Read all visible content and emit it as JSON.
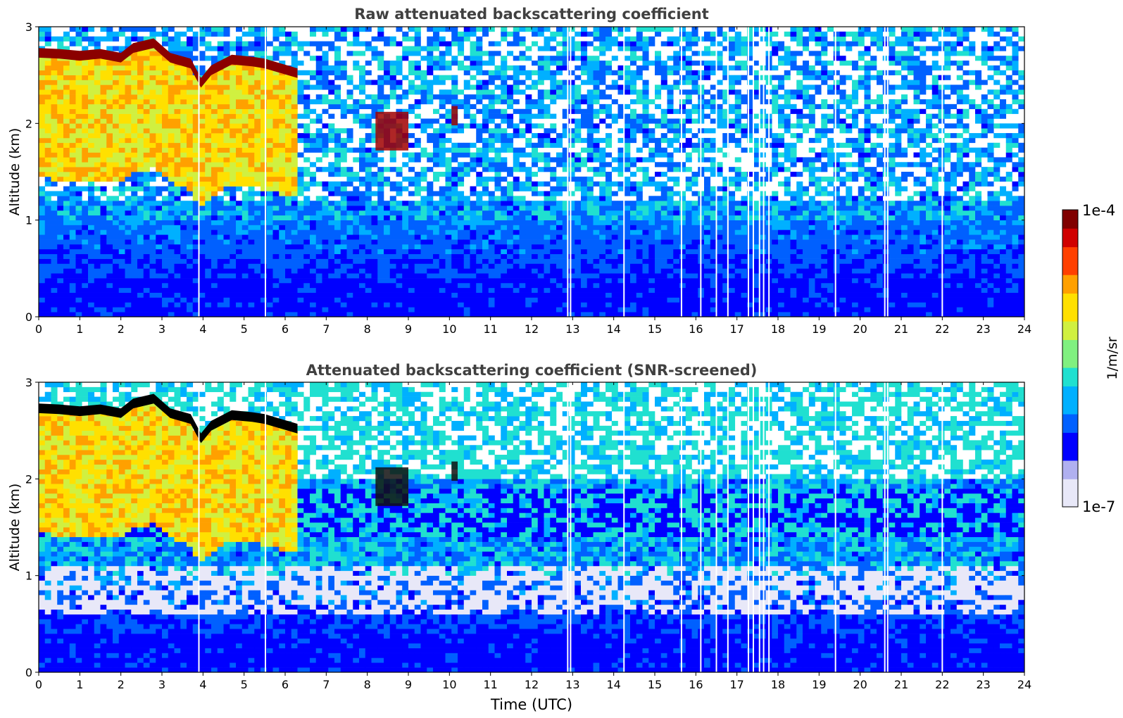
{
  "chart_data": [
    {
      "type": "heatmap",
      "title": "Raw attenuated backscattering coefficient",
      "xlabel": "",
      "ylabel": "Altitude (km)",
      "xlim": [
        0,
        24
      ],
      "ylim": [
        0,
        3
      ],
      "x_ticks": [
        0,
        1,
        2,
        3,
        4,
        5,
        6,
        7,
        8,
        9,
        10,
        11,
        12,
        13,
        14,
        15,
        16,
        17,
        18,
        19,
        20,
        21,
        22,
        23,
        24
      ],
      "y_ticks": [
        0,
        1,
        2,
        3
      ],
      "screened": false,
      "cloud_top_km": [
        {
          "t": 0.0,
          "z": 2.73
        },
        {
          "t": 0.5,
          "z": 2.72
        },
        {
          "t": 1.0,
          "z": 2.7
        },
        {
          "t": 1.5,
          "z": 2.72
        },
        {
          "t": 2.0,
          "z": 2.68
        },
        {
          "t": 2.3,
          "z": 2.78
        },
        {
          "t": 2.8,
          "z": 2.83
        },
        {
          "t": 3.2,
          "z": 2.68
        },
        {
          "t": 3.7,
          "z": 2.62
        },
        {
          "t": 3.95,
          "z": 2.42
        },
        {
          "t": 4.2,
          "z": 2.55
        },
        {
          "t": 4.7,
          "z": 2.66
        },
        {
          "t": 5.2,
          "z": 2.64
        },
        {
          "t": 5.5,
          "z": 2.62
        },
        {
          "t": 6.3,
          "z": 2.52
        }
      ],
      "cloud_patches_km": [
        {
          "t0": 8.2,
          "t1": 9.0,
          "z_bottom": 1.72,
          "z_top": 2.12
        },
        {
          "t0": 10.05,
          "t1": 10.2,
          "z_bottom": 1.98,
          "z_top": 2.18
        }
      ],
      "data_gaps_utc": [
        3.9,
        5.52,
        12.88,
        12.95,
        14.25,
        15.65,
        16.12,
        16.5,
        16.78,
        17.28,
        17.4,
        17.55,
        17.65,
        17.78,
        19.4,
        20.6,
        20.67,
        22.0
      ]
    },
    {
      "type": "heatmap",
      "title": "Attenuated backscattering coefficient (SNR-screened)",
      "xlabel": "Time (UTC)",
      "ylabel": "Altitude (km)",
      "xlim": [
        0,
        24
      ],
      "ylim": [
        0,
        3
      ],
      "x_ticks": [
        0,
        1,
        2,
        3,
        4,
        5,
        6,
        7,
        8,
        9,
        10,
        11,
        12,
        13,
        14,
        15,
        16,
        17,
        18,
        19,
        20,
        21,
        22,
        23,
        24
      ],
      "y_ticks": [
        0,
        1,
        2,
        3
      ],
      "screened": true,
      "cloud_top_km": [
        {
          "t": 0.0,
          "z": 2.73
        },
        {
          "t": 0.5,
          "z": 2.72
        },
        {
          "t": 1.0,
          "z": 2.7
        },
        {
          "t": 1.5,
          "z": 2.72
        },
        {
          "t": 2.0,
          "z": 2.68
        },
        {
          "t": 2.3,
          "z": 2.78
        },
        {
          "t": 2.8,
          "z": 2.83
        },
        {
          "t": 3.2,
          "z": 2.68
        },
        {
          "t": 3.7,
          "z": 2.62
        },
        {
          "t": 3.95,
          "z": 2.42
        },
        {
          "t": 4.2,
          "z": 2.55
        },
        {
          "t": 4.7,
          "z": 2.66
        },
        {
          "t": 5.2,
          "z": 2.64
        },
        {
          "t": 5.5,
          "z": 2.62
        },
        {
          "t": 6.3,
          "z": 2.52
        }
      ],
      "cloud_patches_km": [
        {
          "t0": 8.2,
          "t1": 9.0,
          "z_bottom": 1.72,
          "z_top": 2.12
        },
        {
          "t0": 10.05,
          "t1": 10.2,
          "z_bottom": 1.98,
          "z_top": 2.18
        }
      ],
      "data_gaps_utc": [
        3.9,
        5.52,
        12.88,
        12.95,
        14.25,
        15.65,
        16.12,
        16.5,
        16.78,
        17.28,
        17.4,
        17.55,
        17.65,
        17.78,
        19.4,
        20.6,
        20.67,
        22.0
      ]
    }
  ],
  "colorbar": {
    "label": "1/m/sr",
    "max_label": "1e-4",
    "min_label": "1e-7",
    "scale": "log",
    "colormap": [
      "#e8e8f8",
      "#b0b0f0",
      "#0000ff",
      "#0060ff",
      "#00b0ff",
      "#20e0d0",
      "#80f080",
      "#d0f040",
      "#ffe000",
      "#ffa000",
      "#ff4000",
      "#d00000",
      "#800000"
    ],
    "levels": 32
  }
}
